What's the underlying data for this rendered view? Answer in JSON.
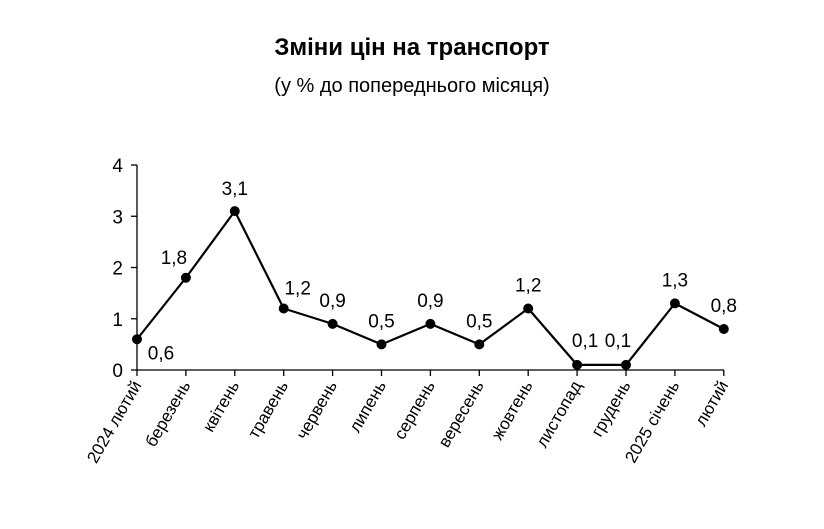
{
  "chart_data": {
    "type": "line",
    "title": "Зміни цін на транспорт",
    "subtitle": "(у % до попереднього місяця)",
    "xlabel": "",
    "ylabel": "",
    "ylim": [
      0,
      4
    ],
    "yticks": [
      "0",
      "1",
      "2",
      "3",
      "4"
    ],
    "grid": false,
    "categories": [
      "2024 лютий",
      "березень",
      "квітень",
      "травень",
      "червень",
      "липень",
      "серпень",
      "вересень",
      "жовтень",
      "листопад",
      "грудень",
      "2025 січень",
      "лютий"
    ],
    "series": [
      {
        "values": [
          0.6,
          1.8,
          3.1,
          1.2,
          0.9,
          0.5,
          0.9,
          0.5,
          1.2,
          0.1,
          0.1,
          1.3,
          0.8
        ],
        "labels": [
          "0,6",
          "1,8",
          "3,1",
          "1,2",
          "0,9",
          "0,5",
          "0,9",
          "0,5",
          "1,2",
          "0,1",
          "0,1",
          "1,3",
          "0,8"
        ],
        "color": "#000000"
      }
    ]
  }
}
